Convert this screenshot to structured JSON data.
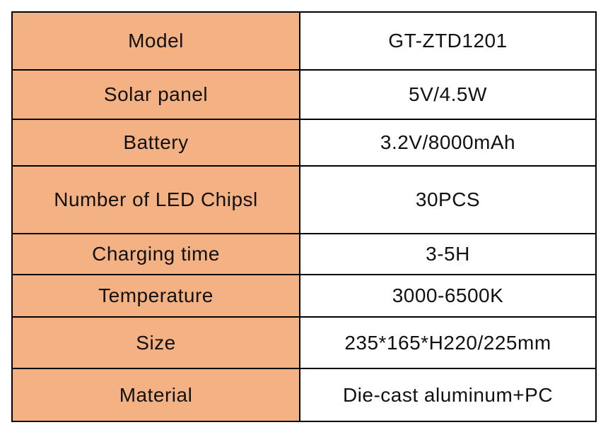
{
  "table": {
    "rows": [
      [
        "Model",
        "GT-ZTD1201"
      ],
      [
        "Solar panel",
        "5V/4.5W"
      ],
      [
        "Battery",
        "3.2V/8000mAh"
      ],
      [
        "Number of LED Chipsl",
        "30PCS"
      ],
      [
        "Charging time",
        "3-5H"
      ],
      [
        "Temperature",
        "3000-6500K"
      ],
      [
        "Size",
        "235*165*H220/225mm"
      ],
      [
        "Material",
        "Die-cast aluminum+PC"
      ]
    ]
  }
}
